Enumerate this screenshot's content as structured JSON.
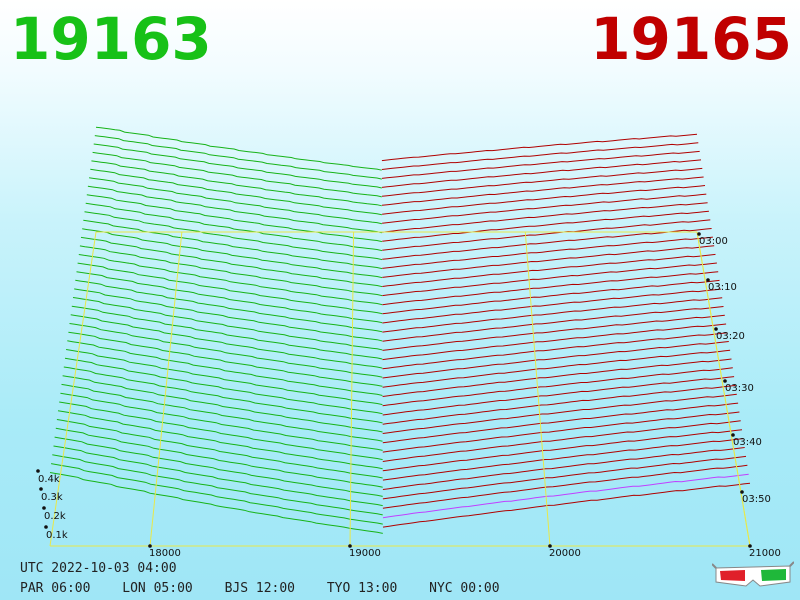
{
  "header": {
    "left_number": "19163",
    "left_color": "#17c117",
    "right_number": "19165",
    "right_color": "#c00000"
  },
  "footer": {
    "utc": "UTC 2022-10-03 04:00",
    "zones": [
      "PAR 06:00",
      "LON 05:00",
      "BJS 12:00",
      "TYO 13:00",
      "NYC 00:00"
    ]
  },
  "icons": {
    "glasses": "3d-glasses-icon"
  },
  "chart_data": {
    "type": "3d-depth-line",
    "x_axis": {
      "range": [
        17500,
        21000
      ],
      "ticks": [
        "18000",
        "19000",
        "20000",
        "21000"
      ]
    },
    "y_axis": {
      "ticks": [
        "0.1k",
        "0.2k",
        "0.3k",
        "0.4k"
      ]
    },
    "time_axis": {
      "ticks": [
        "03:00",
        "03:10",
        "03:20",
        "03:30",
        "03:40",
        "03:50"
      ]
    },
    "split_price": 19164,
    "series": [
      {
        "side": "bid",
        "color": "#17b317",
        "range": [
          17500,
          19163
        ]
      },
      {
        "side": "ask",
        "color": "#b00000",
        "range": [
          19165,
          21000
        ]
      }
    ],
    "latest_color": "#c040ff",
    "grid_color": "#e8e84a"
  }
}
